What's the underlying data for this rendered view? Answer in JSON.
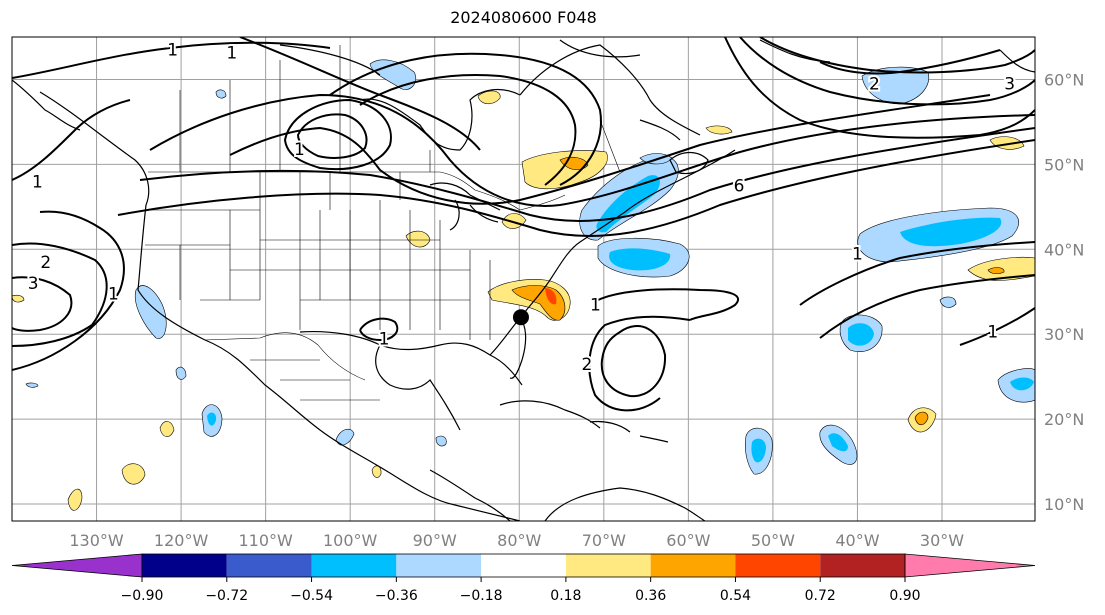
{
  "title": "2024080600 F048",
  "map": {
    "lon_range": [
      -140,
      -19
    ],
    "lat_range": [
      8,
      65
    ],
    "lon_ticks": [
      {
        "lon": -130,
        "label": "130°W"
      },
      {
        "lon": -120,
        "label": "120°W"
      },
      {
        "lon": -110,
        "label": "110°W"
      },
      {
        "lon": -100,
        "label": "100°W"
      },
      {
        "lon": -90,
        "label": "90°W"
      },
      {
        "lon": -80,
        "label": "80°W"
      },
      {
        "lon": -70,
        "label": "70°W"
      },
      {
        "lon": -60,
        "label": "60°W"
      },
      {
        "lon": -50,
        "label": "50°W"
      },
      {
        "lon": -40,
        "label": "40°W"
      },
      {
        "lon": -30,
        "label": "30°W"
      }
    ],
    "lat_ticks": [
      {
        "lat": 60,
        "label": "60°N"
      },
      {
        "lat": 50,
        "label": "50°N"
      },
      {
        "lat": 40,
        "label": "40°N"
      },
      {
        "lat": 30,
        "label": "30°N"
      },
      {
        "lat": 20,
        "label": "20°N"
      },
      {
        "lat": 10,
        "label": "10°N"
      }
    ],
    "storm_marker": {
      "lon": -79.8,
      "lat": 32.0
    },
    "contour_labels": [
      {
        "text": "1",
        "lon": -121,
        "lat": 63.5
      },
      {
        "text": "1",
        "lon": -114,
        "lat": 63.2
      },
      {
        "text": "1",
        "lon": -106,
        "lat": 51.8
      },
      {
        "text": "1",
        "lon": -137,
        "lat": 48.0
      },
      {
        "text": "2",
        "lon": -136,
        "lat": 38.5
      },
      {
        "text": "3",
        "lon": -137.5,
        "lat": 36.0
      },
      {
        "text": "1",
        "lon": -128,
        "lat": 34.8
      },
      {
        "text": "1",
        "lon": -96,
        "lat": 29.5
      },
      {
        "text": "1",
        "lon": -71,
        "lat": 33.5
      },
      {
        "text": "2",
        "lon": -72,
        "lat": 26.5
      },
      {
        "text": "6",
        "lon": -54,
        "lat": 47.5
      },
      {
        "text": "1",
        "lon": -40,
        "lat": 39.5
      },
      {
        "text": "1",
        "lon": -24,
        "lat": 30.3
      },
      {
        "text": "2",
        "lon": -38,
        "lat": 59.5
      },
      {
        "text": "3",
        "lon": -22,
        "lat": 59.5
      }
    ]
  },
  "colorbar": {
    "colors": [
      "#9932cc",
      "#00008b",
      "#3a5bcc",
      "#00bfff",
      "#add8ff",
      "#ffffff",
      "#ffe980",
      "#ffa500",
      "#ff4500",
      "#b22222",
      "#ff7bac"
    ],
    "ticks": [
      "−0.90",
      "−0.72",
      "−0.54",
      "−0.36",
      "−0.18",
      "0.18",
      "0.36",
      "0.54",
      "0.72",
      "0.90"
    ]
  }
}
